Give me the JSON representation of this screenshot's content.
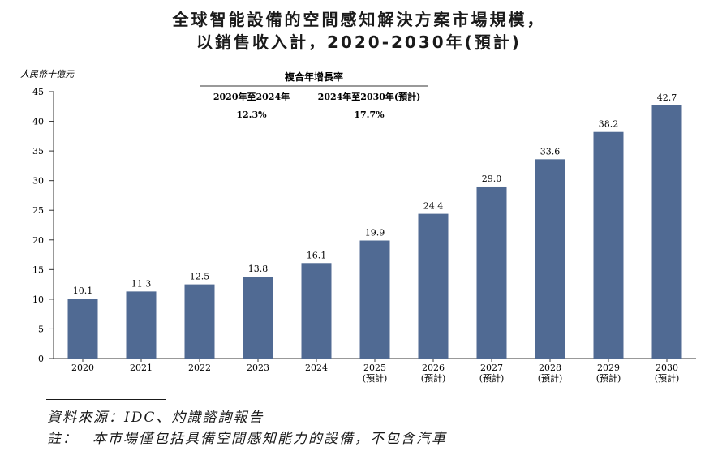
{
  "title_line1": "全球智能設備的空間感知解決方案市場規模，",
  "title_line2": "以銷售收入計，2020-2030年(預計)",
  "chart_data": {
    "type": "bar",
    "ylabel": "人民幣十億元",
    "ylim": [
      0,
      45
    ],
    "yticks": [
      0,
      5,
      10,
      15,
      20,
      25,
      30,
      35,
      40,
      45
    ],
    "categories": [
      "2020",
      "2021",
      "2022",
      "2023",
      "2024",
      "2025",
      "2026",
      "2027",
      "2028",
      "2029",
      "2030"
    ],
    "category_notes": [
      "",
      "",
      "",
      "",
      "",
      "(預計)",
      "(預計)",
      "(預計)",
      "(預計)",
      "(預計)",
      "(預計)"
    ],
    "values": [
      10.1,
      11.3,
      12.5,
      13.8,
      16.1,
      19.9,
      24.4,
      29.0,
      33.6,
      38.2,
      42.7
    ],
    "value_labels": [
      "10.1",
      "11.3",
      "12.5",
      "13.8",
      "16.1",
      "19.9",
      "24.4",
      "29.0",
      "33.6",
      "38.2",
      "42.7"
    ],
    "bar_color": "#506a93",
    "cagr_table": {
      "header": "複合年增長率",
      "periods": [
        "2020年至2024年",
        "2024年至2030年(預計)"
      ],
      "rates": [
        "12.3%",
        "17.7%"
      ]
    }
  },
  "source": "資料來源：IDC、灼識諮詢報告",
  "footnote_label": "註：",
  "footnote_text": "本市場僅包括具備空間感知能力的設備，不包含汽車"
}
